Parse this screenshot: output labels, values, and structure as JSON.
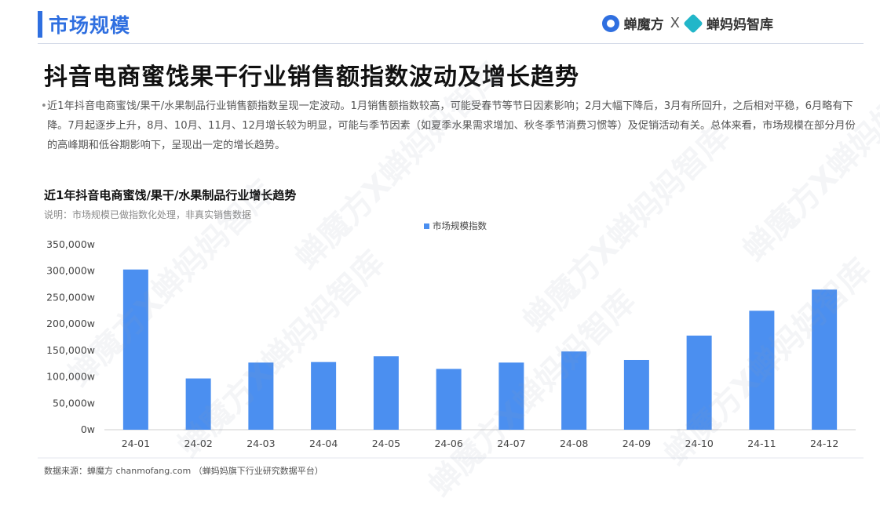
{
  "header": {
    "section_title": "市场规模",
    "brand_left": "蝉魔方",
    "brand_sep": "X",
    "brand_right": "蝉妈妈智库"
  },
  "main_title": "抖音电商蜜饯果干行业销售额指数波动及增长趋势",
  "description": "近1年抖音电商蜜饯/果干/水果制品行业销售额指数呈现一定波动。1月销售额指数较高，可能受春节等节日因素影响；2月大幅下降后，3月有所回升，之后相对平稳，6月略有下降。7月起逐步上升，8月、10月、11月、12月增长较为明显，可能与季节因素（如夏季水果需求增加、秋冬季节消费习惯等）及促销活动有关。总体来看，市场规模在部分月份的高峰期和低谷期影响下，呈现出一定的增长趋势。",
  "chart_data": {
    "type": "bar",
    "title": "近1年抖音电商蜜饯/果干/水果制品行业增长趋势",
    "subtitle": "说明：市场规模已做指数化处理，非真实销售数据",
    "categories": [
      "24-01",
      "24-02",
      "24-03",
      "24-04",
      "24-05",
      "24-06",
      "24-07",
      "24-08",
      "24-09",
      "24-10",
      "24-11",
      "24-12"
    ],
    "series": [
      {
        "name": "市场规模指数",
        "values": [
          303000,
          97000,
          127000,
          128000,
          139000,
          115000,
          127000,
          148000,
          132000,
          178000,
          225000,
          265000
        ],
        "color": "#4b8ff0"
      }
    ],
    "y_ticks": [
      "0w",
      "50,000w",
      "100,000w",
      "150,000w",
      "200,000w",
      "250,000w",
      "300,000w",
      "350,000w"
    ],
    "ylim": [
      0,
      350000
    ],
    "grid": false,
    "legend_position": "top-center"
  },
  "source": "数据来源：蝉魔方 chanmofang.com （蝉妈妈旗下行业研究数据平台）",
  "watermark": "蝉魔方X蝉妈妈智库"
}
